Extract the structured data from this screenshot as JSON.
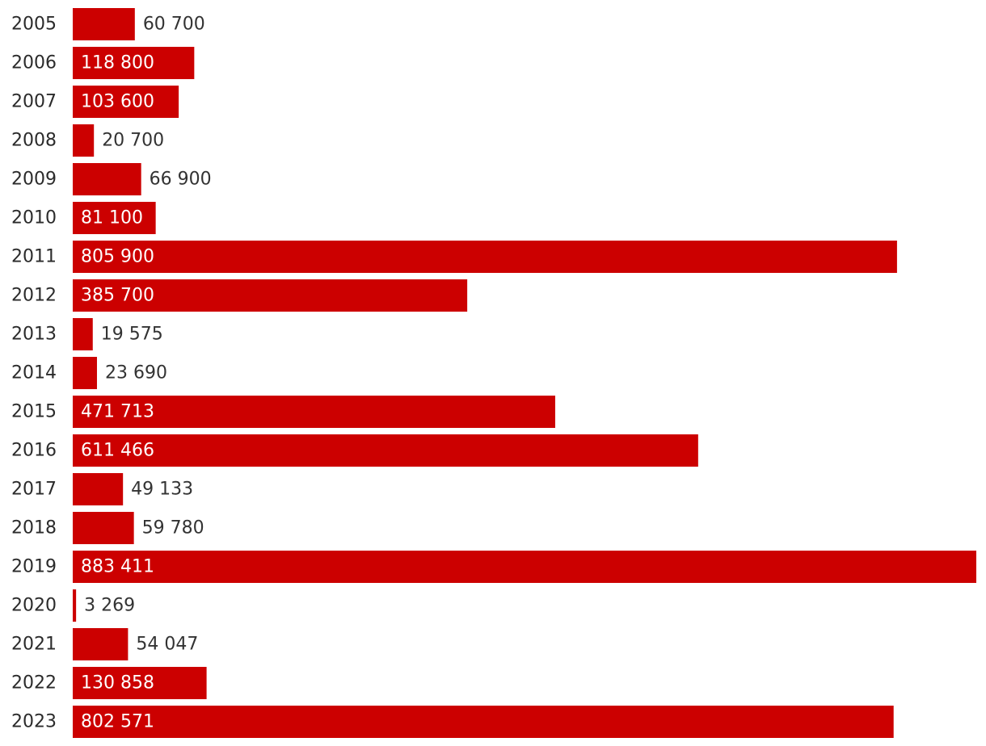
{
  "chart_data": {
    "type": "bar",
    "orientation": "horizontal",
    "color": "#cc0000",
    "title": "",
    "xlabel": "",
    "ylabel": "",
    "xlim": [
      0,
      883411
    ],
    "grid": false,
    "categories": [
      "2005",
      "2006",
      "2007",
      "2008",
      "2009",
      "2010",
      "2011",
      "2012",
      "2013",
      "2014",
      "2015",
      "2016",
      "2017",
      "2018",
      "2019",
      "2020",
      "2021",
      "2022",
      "2023"
    ],
    "values": [
      60700,
      118800,
      103600,
      20700,
      66900,
      81100,
      805900,
      385700,
      19575,
      23690,
      471713,
      611466,
      49133,
      59780,
      883411,
      3269,
      54047,
      130858,
      802571
    ],
    "value_labels": [
      "60 700",
      "118 800",
      "103 600",
      "20 700",
      "66 900",
      "81 100",
      "805 900",
      "385 700",
      "19 575",
      "23 690",
      "471 713",
      "611 466",
      "49 133",
      "59 780",
      "883 411",
      "3 269",
      "54 047",
      "130 858",
      "802 571"
    ]
  }
}
